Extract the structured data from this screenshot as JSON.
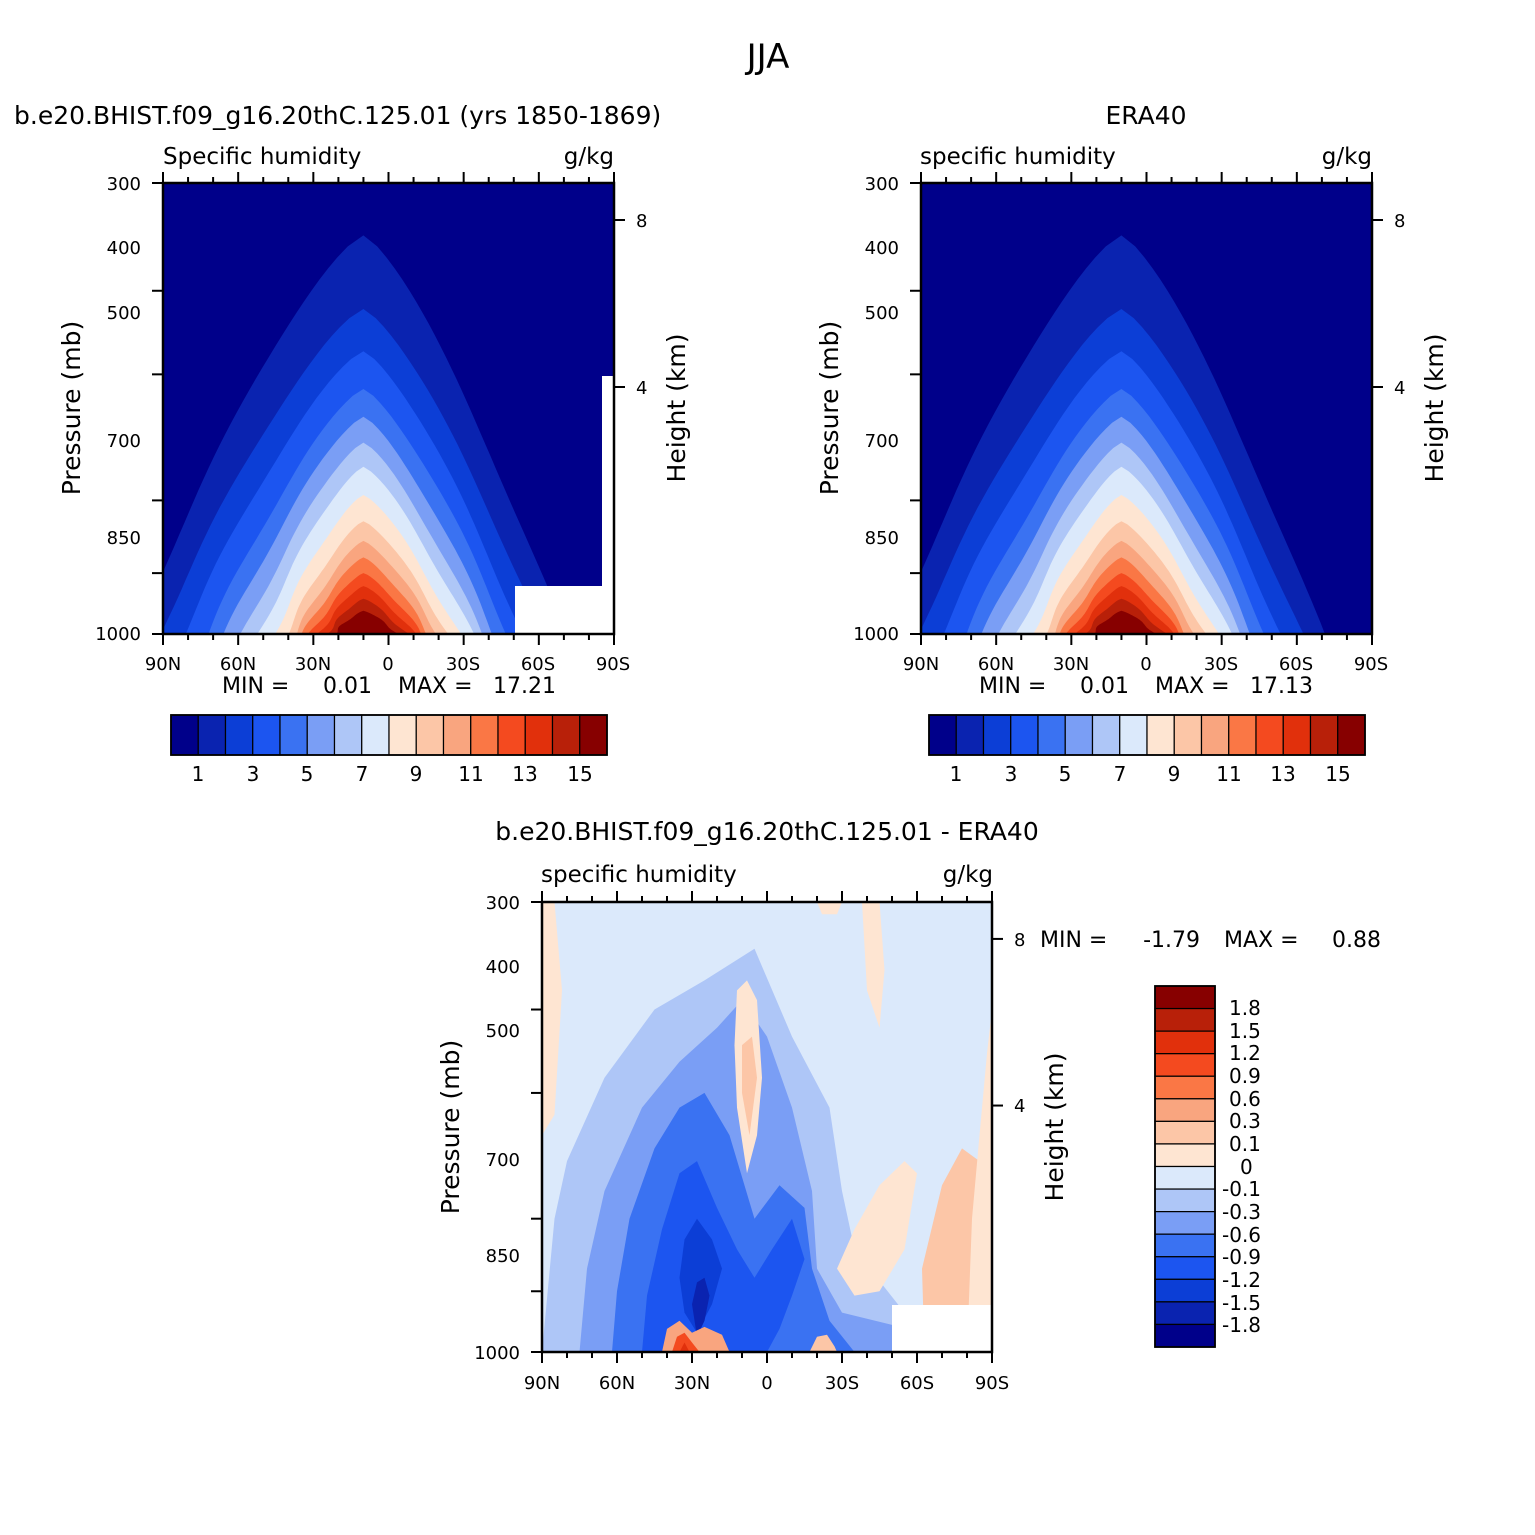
{
  "title": "JJA",
  "colors": {
    "abs_palette": [
      "#00008a",
      "#0a23b0",
      "#0c3ed6",
      "#1c55f0",
      "#3a72f2",
      "#7a9ef5",
      "#aec6f7",
      "#dbe9fb",
      "#fee5d2",
      "#fcc6a7",
      "#f9a57f",
      "#fa7745",
      "#f44a1f",
      "#e1300c",
      "#b82009",
      "#870000"
    ],
    "diff_palette": [
      "#00008a",
      "#0a23b0",
      "#0c3ed6",
      "#1c55f0",
      "#3a72f2",
      "#7a9ef5",
      "#aec6f7",
      "#dbe9fb",
      "#fee5d2",
      "#fcc6a7",
      "#f9a57f",
      "#fa7745",
      "#f44a1f",
      "#e1300c",
      "#b82009",
      "#870000"
    ]
  },
  "chart_data": [
    {
      "type": "heatmap",
      "title": "b.e20.BHIST.f09_g16.20thC.125.01 (yrs 1850-1869)",
      "left_subtitle": "Specific humidity",
      "right_subtitle": "g/kg",
      "ylabel": "Pressure (mb)",
      "ylabel2": "Height (km)",
      "x_ticks": [
        "90N",
        "60N",
        "30N",
        "0",
        "30S",
        "60S",
        "90S"
      ],
      "y_ticks": [
        "300",
        "400",
        "500",
        "700",
        "850",
        "1000"
      ],
      "y2_ticks": [
        "8",
        "4"
      ],
      "xlim": [
        90,
        -90
      ],
      "ylim": [
        1000,
        300
      ],
      "y_scale": "log",
      "min_label": "MIN =",
      "min_value": "0.01",
      "max_label": "MAX =",
      "max_value": "17.21",
      "colorbar_labels": [
        "1",
        "3",
        "5",
        "7",
        "9",
        "11",
        "13",
        "15"
      ],
      "contour_levels": [
        1,
        2,
        3,
        4,
        5,
        6,
        7,
        8,
        9,
        10,
        11,
        12,
        13,
        14,
        15
      ],
      "peak_lat": 10,
      "peak_value": 17.21
    },
    {
      "type": "heatmap",
      "title": "ERA40",
      "left_subtitle": "specific humidity",
      "right_subtitle": "g/kg",
      "ylabel": "Pressure (mb)",
      "ylabel2": "Height (km)",
      "x_ticks": [
        "90N",
        "60N",
        "30N",
        "0",
        "30S",
        "60S",
        "90S"
      ],
      "y_ticks": [
        "300",
        "400",
        "500",
        "700",
        "850",
        "1000"
      ],
      "y2_ticks": [
        "8",
        "4"
      ],
      "xlim": [
        90,
        -90
      ],
      "ylim": [
        1000,
        300
      ],
      "y_scale": "log",
      "min_label": "MIN =",
      "min_value": "0.01",
      "max_label": "MAX =",
      "max_value": "17.13",
      "colorbar_labels": [
        "1",
        "3",
        "5",
        "7",
        "9",
        "11",
        "13",
        "15"
      ],
      "contour_levels": [
        1,
        2,
        3,
        4,
        5,
        6,
        7,
        8,
        9,
        10,
        11,
        12,
        13,
        14,
        15
      ],
      "peak_lat": 10,
      "peak_value": 17.13
    },
    {
      "type": "heatmap",
      "title": "b.e20.BHIST.f09_g16.20thC.125.01 - ERA40",
      "left_subtitle": "specific humidity",
      "right_subtitle": "g/kg",
      "ylabel": "Pressure (mb)",
      "ylabel2": "Height (km)",
      "x_ticks": [
        "90N",
        "60N",
        "30N",
        "0",
        "30S",
        "60S",
        "90S"
      ],
      "y_ticks": [
        "300",
        "400",
        "500",
        "700",
        "850",
        "1000"
      ],
      "y2_ticks": [
        "8",
        "4"
      ],
      "xlim": [
        90,
        -90
      ],
      "ylim": [
        1000,
        300
      ],
      "y_scale": "log",
      "min_label": "MIN =",
      "min_value": "-1.79",
      "max_label": "MAX =",
      "max_value": "0.88",
      "colorbar_labels": [
        "1.8",
        "1.5",
        "1.2",
        "0.9",
        "0.6",
        "0.3",
        "0.1",
        "0",
        "-0.1",
        "-0.3",
        "-0.6",
        "-0.9",
        "-1.2",
        "-1.5",
        "-1.8"
      ],
      "contour_levels": [
        -1.8,
        -1.5,
        -1.2,
        -0.9,
        -0.6,
        -0.3,
        -0.1,
        0,
        0.1,
        0.3,
        0.6,
        0.9,
        1.2,
        1.5,
        1.8
      ]
    }
  ]
}
